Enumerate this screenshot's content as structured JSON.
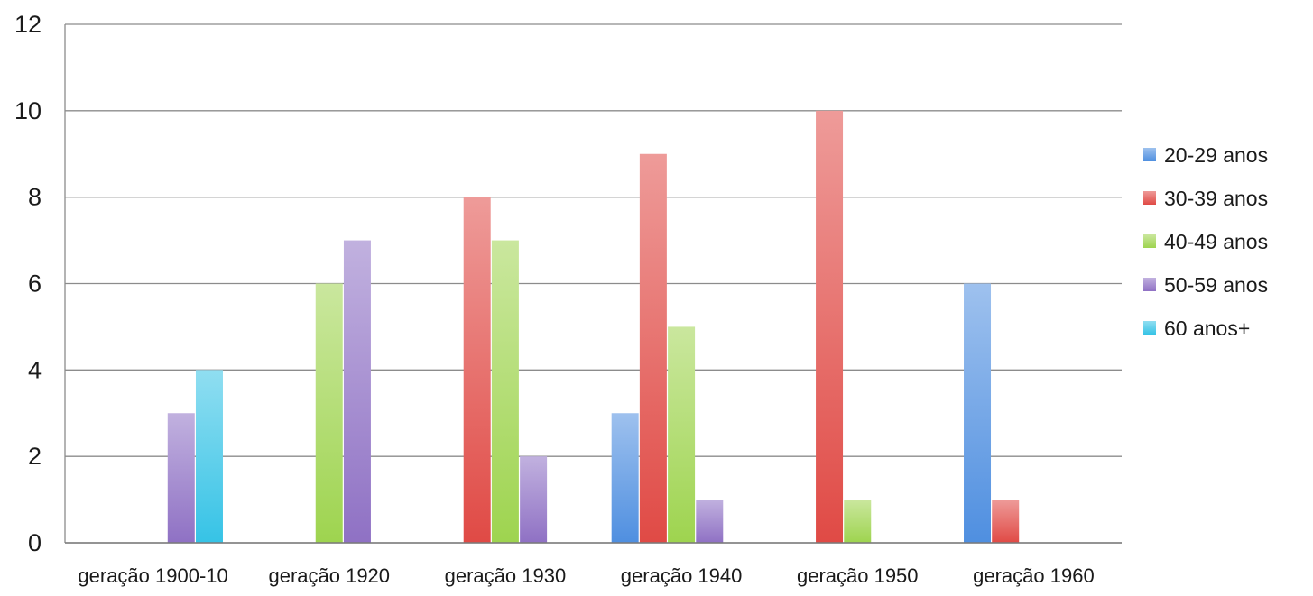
{
  "chart_data": {
    "type": "bar",
    "title": "",
    "xlabel": "",
    "ylabel": "",
    "ylim": [
      0,
      12
    ],
    "yticks": [
      0,
      2,
      4,
      6,
      8,
      10,
      12
    ],
    "grid": true,
    "legend_position": "right",
    "categories": [
      "geração 1900-10",
      "geração 1920",
      "geração 1930",
      "geração 1940",
      "geração 1950",
      "geração 1960"
    ],
    "series": [
      {
        "name": "20-29 anos",
        "color": "#4f8fe0",
        "values": [
          0,
          0,
          0,
          3,
          0,
          6
        ]
      },
      {
        "name": "30-39 anos",
        "color": "#e04a45",
        "values": [
          0,
          0,
          8,
          9,
          10,
          1
        ]
      },
      {
        "name": "40-49 anos",
        "color": "#9ed44f",
        "values": [
          0,
          6,
          7,
          5,
          1,
          0
        ]
      },
      {
        "name": "50-59 anos",
        "color": "#8f71c4",
        "values": [
          3,
          7,
          2,
          1,
          0,
          0
        ]
      },
      {
        "name": "60 anos+",
        "color": "#36c3e6",
        "values": [
          4,
          0,
          0,
          0,
          0,
          0
        ]
      }
    ]
  }
}
